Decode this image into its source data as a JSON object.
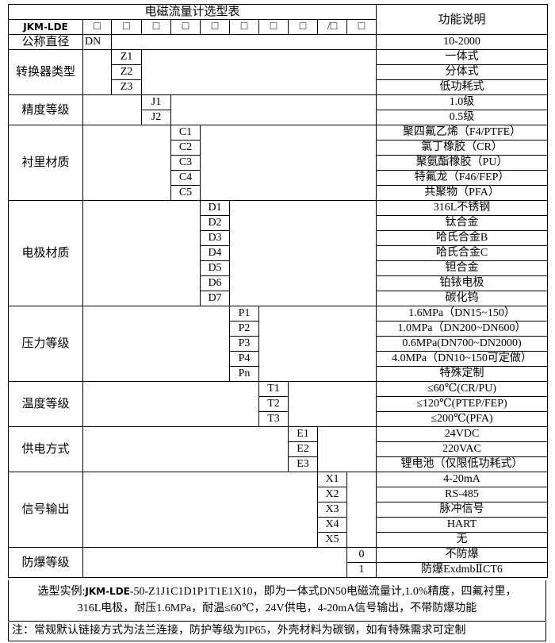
{
  "header": {
    "title": "电磁流量计选型表",
    "function_label": "功能说明",
    "model": "JKM-LDE",
    "boxes": [
      "□",
      "□",
      "□",
      "□",
      "□",
      "□",
      "□",
      "□",
      "/□",
      "□"
    ]
  },
  "groups": [
    {
      "name": "公称直径",
      "col": 0,
      "items": [
        {
          "code": "DN",
          "desc": "10-2000"
        }
      ]
    },
    {
      "name": "转换器类型",
      "col": 1,
      "items": [
        {
          "code": "Z1",
          "desc": "一体式"
        },
        {
          "code": "Z2",
          "desc": "分体式"
        },
        {
          "code": "Z3",
          "desc": "低功耗式"
        }
      ]
    },
    {
      "name": "精度等级",
      "col": 2,
      "items": [
        {
          "code": "J1",
          "desc": "1.0级"
        },
        {
          "code": "J2",
          "desc": "0.5级"
        }
      ]
    },
    {
      "name": "衬里材质",
      "col": 3,
      "items": [
        {
          "code": "C1",
          "desc": "聚四氟乙烯（F4/PTFE）"
        },
        {
          "code": "C2",
          "desc": "氯丁橡胶（CR）"
        },
        {
          "code": "C3",
          "desc": "聚氨酯橡胶（PU）"
        },
        {
          "code": "C4",
          "desc": "特氟龙（F46/FEP）"
        },
        {
          "code": "C5",
          "desc": "共聚物（PFA）"
        }
      ]
    },
    {
      "name": "电极材质",
      "col": 4,
      "items": [
        {
          "code": "D1",
          "desc": "316L不锈钢"
        },
        {
          "code": "D2",
          "desc": "钛合金"
        },
        {
          "code": "D3",
          "desc": "哈氏合金B"
        },
        {
          "code": "D4",
          "desc": "哈氏合金C"
        },
        {
          "code": "D5",
          "desc": "钽合金"
        },
        {
          "code": "D6",
          "desc": "铂铱电极"
        },
        {
          "code": "D7",
          "desc": "碳化钨"
        }
      ]
    },
    {
      "name": "压力等级",
      "col": 5,
      "items": [
        {
          "code": "P1",
          "desc": "1.6MPa（DN15~150）"
        },
        {
          "code": "P2",
          "desc": "1.0MPa（DN200~DN600）"
        },
        {
          "code": "P3",
          "desc": "0.6MPa(DN700~DN2000)"
        },
        {
          "code": "P4",
          "desc": "4.0MPa（DN10~150可定做）"
        },
        {
          "code": "Pn",
          "desc": "特殊定制"
        }
      ]
    },
    {
      "name": "温度等级",
      "col": 6,
      "items": [
        {
          "code": "T1",
          "desc": "≤60℃(CR/PU)"
        },
        {
          "code": "T2",
          "desc": "≤120℃(PTEP/FEP)"
        },
        {
          "code": "T3",
          "desc": "≤200℃(PFA)"
        }
      ]
    },
    {
      "name": "供电方式",
      "col": 7,
      "items": [
        {
          "code": "E1",
          "desc": "24VDC"
        },
        {
          "code": "E2",
          "desc": "220VAC"
        },
        {
          "code": "E3",
          "desc": "锂电池（仅限低功耗式）"
        }
      ]
    },
    {
      "name": "信号输出",
      "col": 8,
      "items": [
        {
          "code": "X1",
          "desc": "4-20mA"
        },
        {
          "code": "X2",
          "desc": "RS-485"
        },
        {
          "code": "X3",
          "desc": "脉冲信号"
        },
        {
          "code": "X4",
          "desc": "HART"
        },
        {
          "code": "X5",
          "desc": "无"
        }
      ]
    },
    {
      "name": "防爆等级",
      "col": 9,
      "items": [
        {
          "code": "0",
          "desc": "不防爆"
        },
        {
          "code": "1",
          "desc": "防爆ExdmbⅡCT6"
        }
      ]
    }
  ],
  "example": {
    "label": "选型实例:",
    "model": "JKM-LDE",
    "line1_rest": "-50-Z1J1C1D1P1T1E1X10，即为一体式DN50电磁流量计,1.0%精度，四氟衬里，",
    "line2": "316L电极，耐压1.6MPa，耐温≤60℃，24V供电，4-20mA信号输出，不带防爆功能"
  },
  "note": "注：常规默认链接方式为法兰连接，防护等级为IP65，外壳材料为碳钢，如有特殊需求可定制"
}
